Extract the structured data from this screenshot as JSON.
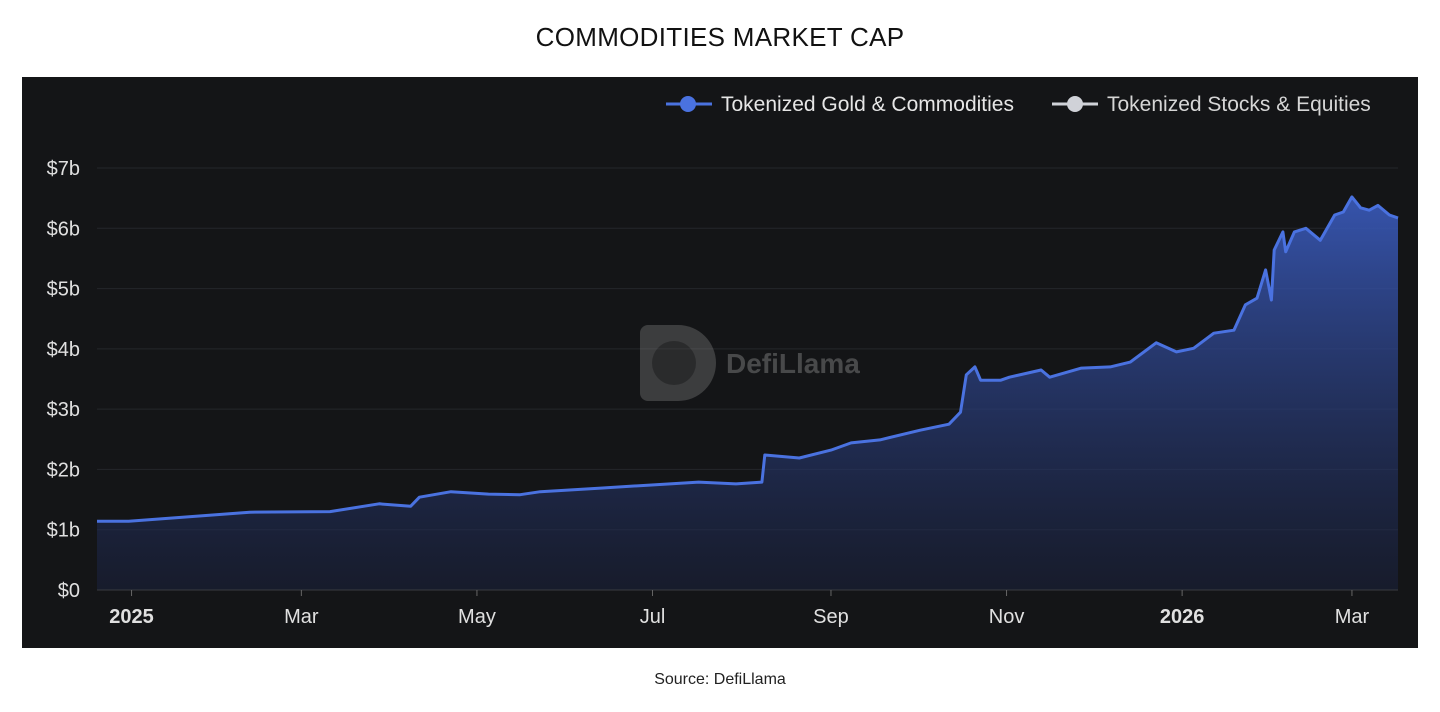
{
  "title": "COMMODITIES MARKET CAP",
  "source": "Source: DefiLlama",
  "watermark": "DefiLlama",
  "colors": {
    "series1": "#4a72e0",
    "series2": "#d0d2d8",
    "background": "#141517"
  },
  "chart_data": {
    "type": "area",
    "title": "COMMODITIES MARKET CAP",
    "legend": {
      "placement": "top-right",
      "entries": [
        "Tokenized Gold & Commodities",
        "Tokenized Stocks & Equities"
      ]
    },
    "grid": true,
    "ylim": [
      0,
      7
    ],
    "y_ticks": [
      "$0",
      "$1b",
      "$2b",
      "$3b",
      "$4b",
      "$5b",
      "$6b",
      "$7b"
    ],
    "x_ticks": [
      {
        "date": "2025-01-01",
        "label": "2025",
        "bold": true
      },
      {
        "date": "2025-03-01",
        "label": "Mar"
      },
      {
        "date": "2025-05-01",
        "label": "May"
      },
      {
        "date": "2025-07-01",
        "label": "Jul"
      },
      {
        "date": "2025-09-01",
        "label": "Sep"
      },
      {
        "date": "2025-11-01",
        "label": "Nov"
      },
      {
        "date": "2026-01-01",
        "label": "2026",
        "bold": true
      },
      {
        "date": "2026-03-01",
        "label": "Mar"
      }
    ],
    "xlim": [
      "2024-12-20",
      "2026-03-17"
    ],
    "series": [
      {
        "name": "Tokenized Gold & Commodities",
        "unit": "USD billions",
        "points": [
          [
            "2024-12-20",
            1.14
          ],
          [
            "2024-12-31",
            1.14
          ],
          [
            "2025-02-11",
            1.29
          ],
          [
            "2025-03-11",
            1.3
          ],
          [
            "2025-03-28",
            1.43
          ],
          [
            "2025-04-08",
            1.39
          ],
          [
            "2025-04-11",
            1.54
          ],
          [
            "2025-04-22",
            1.63
          ],
          [
            "2025-05-05",
            1.59
          ],
          [
            "2025-05-16",
            1.58
          ],
          [
            "2025-05-23",
            1.63
          ],
          [
            "2025-06-13",
            1.69
          ],
          [
            "2025-06-30",
            1.74
          ],
          [
            "2025-07-17",
            1.79
          ],
          [
            "2025-07-30",
            1.76
          ],
          [
            "2025-08-08",
            1.79
          ],
          [
            "2025-08-09",
            2.24
          ],
          [
            "2025-08-21",
            2.19
          ],
          [
            "2025-09-01",
            2.32
          ],
          [
            "2025-09-08",
            2.44
          ],
          [
            "2025-09-18",
            2.49
          ],
          [
            "2025-10-02",
            2.65
          ],
          [
            "2025-10-12",
            2.75
          ],
          [
            "2025-10-16",
            2.95
          ],
          [
            "2025-10-18",
            3.57
          ],
          [
            "2025-10-21",
            3.7
          ],
          [
            "2025-10-23",
            3.48
          ],
          [
            "2025-10-30",
            3.48
          ],
          [
            "2025-11-02",
            3.53
          ],
          [
            "2025-11-13",
            3.65
          ],
          [
            "2025-11-16",
            3.53
          ],
          [
            "2025-11-27",
            3.68
          ],
          [
            "2025-12-07",
            3.7
          ],
          [
            "2025-12-14",
            3.78
          ],
          [
            "2025-12-23",
            4.1
          ],
          [
            "2025-12-30",
            3.95
          ],
          [
            "2026-01-05",
            4.01
          ],
          [
            "2026-01-12",
            4.26
          ],
          [
            "2026-01-19",
            4.31
          ],
          [
            "2026-01-23",
            4.73
          ],
          [
            "2026-01-27",
            4.84
          ],
          [
            "2026-01-30",
            5.31
          ],
          [
            "2026-02-01",
            4.81
          ],
          [
            "2026-02-02",
            5.64
          ],
          [
            "2026-02-05",
            5.94
          ],
          [
            "2026-02-06",
            5.61
          ],
          [
            "2026-02-09",
            5.94
          ],
          [
            "2026-02-13",
            6.0
          ],
          [
            "2026-02-18",
            5.8
          ],
          [
            "2026-02-23",
            6.22
          ],
          [
            "2026-02-26",
            6.27
          ],
          [
            "2026-03-01",
            6.52
          ],
          [
            "2026-03-04",
            6.34
          ],
          [
            "2026-03-07",
            6.3
          ],
          [
            "2026-03-10",
            6.38
          ],
          [
            "2026-03-14",
            6.22
          ],
          [
            "2026-03-17",
            6.17
          ]
        ]
      },
      {
        "name": "Tokenized Stocks & Equities",
        "points": []
      }
    ]
  }
}
